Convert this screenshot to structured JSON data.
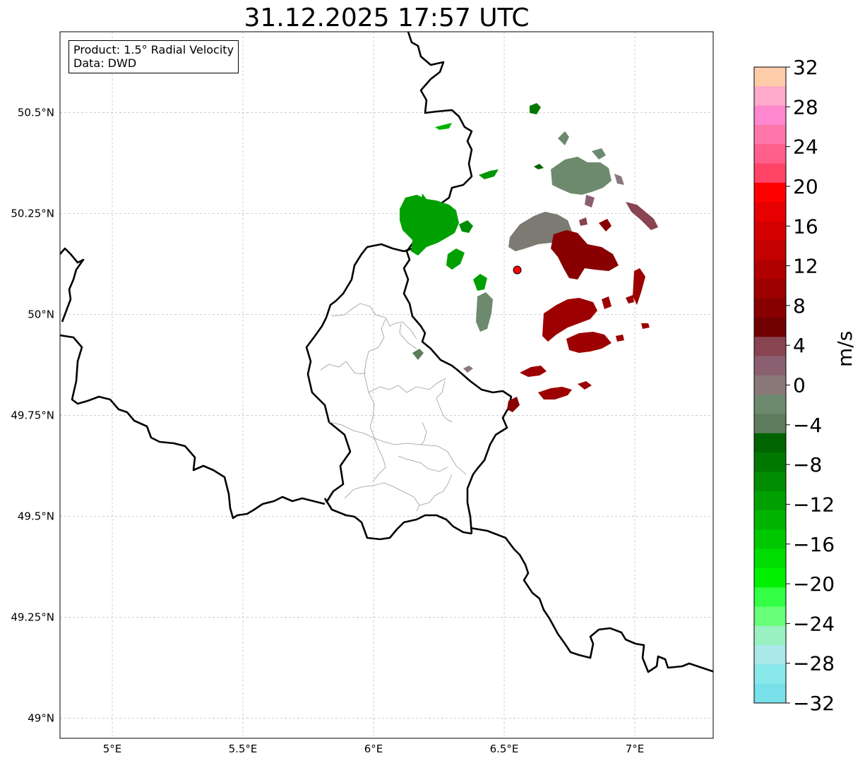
{
  "title": "31.12.2025 17:57 UTC",
  "info_box": {
    "product": "Product: 1.5° Radial Velocity",
    "source": "Data: DWD"
  },
  "map": {
    "lon_range": [
      4.8,
      7.3
    ],
    "lat_range": [
      48.95,
      50.7
    ],
    "lon_ticks": [
      {
        "value": 5.0,
        "label": "5°E"
      },
      {
        "value": 5.5,
        "label": "5.5°E"
      },
      {
        "value": 6.0,
        "label": "6°E"
      },
      {
        "value": 6.5,
        "label": "6.5°E"
      },
      {
        "value": 7.0,
        "label": "7°E"
      }
    ],
    "lat_ticks": [
      {
        "value": 50.5,
        "label": "50.5°N"
      },
      {
        "value": 50.25,
        "label": "50.25°N"
      },
      {
        "value": 50.0,
        "label": "50°N"
      },
      {
        "value": 49.75,
        "label": "49.75°N"
      },
      {
        "value": 49.5,
        "label": "49.5°N"
      },
      {
        "value": 49.25,
        "label": "49.25°N"
      },
      {
        "value": 49.0,
        "label": "49°N"
      }
    ],
    "grid": true,
    "radar_site": {
      "lon": 6.55,
      "lat": 50.11,
      "color": "#ff0000"
    }
  },
  "colorbar": {
    "unit": "m/s",
    "min": -32,
    "max": 32,
    "ticks": [
      32,
      28,
      24,
      20,
      16,
      12,
      8,
      4,
      0,
      -4,
      -8,
      -12,
      -16,
      -20,
      -24,
      -28,
      -32
    ],
    "tick_labels": [
      "32",
      "28",
      "24",
      "20",
      "16",
      "12",
      "8",
      "4",
      "0",
      "−4",
      "−8",
      "−12",
      "−16",
      "−20",
      "−24",
      "−28",
      "−32"
    ],
    "colors_top_to_bottom": [
      "#ffccaa",
      "#ffaac8",
      "#ff88d0",
      "#ff77aa",
      "#ff5f8a",
      "#ff4466",
      "#ff0000",
      "#e60000",
      "#d40000",
      "#c40000",
      "#b00000",
      "#9c0000",
      "#880000",
      "#700000",
      "#884450",
      "#8a6070",
      "#8a7878",
      "#6e8a6e",
      "#5c7c5c",
      "#006400",
      "#007800",
      "#008c00",
      "#00a000",
      "#00b400",
      "#00c800",
      "#00dc00",
      "#00f000",
      "#33ff44",
      "#66ff77",
      "#99f0c0",
      "#aae8ea",
      "#88e8ea",
      "#77e0e8"
    ]
  }
}
